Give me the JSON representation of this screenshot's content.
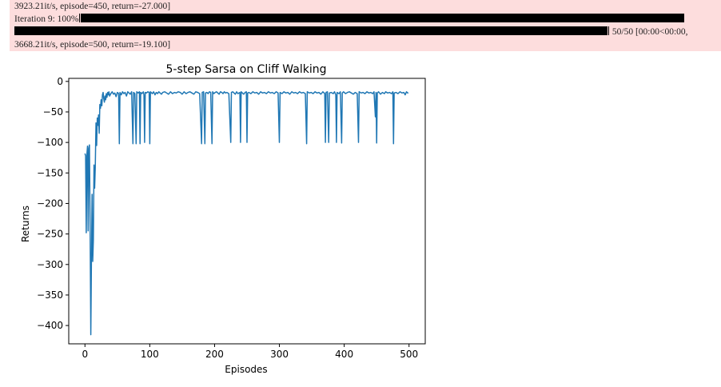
{
  "progress": {
    "line1_text": "3923.21it/s, episode=450, return=-27.000]",
    "iteration_label": "Iteration 9: 100%",
    "iteration_percent": 100,
    "stats_line2": "50/50 [00:00<00:00,",
    "line3_text": "3668.21it/s, episode=500, return=-19.100]"
  },
  "chart_data": {
    "type": "line",
    "title": "5-step Sarsa on Cliff Walking",
    "xlabel": "Episodes",
    "ylabel": "Returns",
    "xlim": [
      -25,
      525
    ],
    "ylim": [
      -430,
      5
    ],
    "xticks": [
      0,
      100,
      200,
      300,
      400,
      500
    ],
    "yticks": [
      0,
      -50,
      -100,
      -150,
      -200,
      -250,
      -300,
      -350,
      -400
    ],
    "grid": false,
    "color": "#1f77b4",
    "series": [
      {
        "name": "",
        "points": [
          [
            0,
            -118
          ],
          [
            1,
            -122
          ],
          [
            2,
            -248
          ],
          [
            3,
            -120
          ],
          [
            4,
            -106
          ],
          [
            5,
            -245
          ],
          [
            6,
            -110
          ],
          [
            7,
            -104
          ],
          [
            8,
            -248
          ],
          [
            9,
            -415
          ],
          [
            10,
            -290
          ],
          [
            11,
            -185
          ],
          [
            12,
            -295
          ],
          [
            13,
            -260
          ],
          [
            14,
            -137
          ],
          [
            15,
            -175
          ],
          [
            16,
            -140
          ],
          [
            17,
            -68
          ],
          [
            18,
            -105
          ],
          [
            19,
            -60
          ],
          [
            20,
            -72
          ],
          [
            21,
            -55
          ],
          [
            22,
            -85
          ],
          [
            23,
            -38
          ],
          [
            24,
            -44
          ],
          [
            25,
            -30
          ],
          [
            26,
            -40
          ],
          [
            27,
            -22
          ],
          [
            28,
            -18
          ],
          [
            29,
            -28
          ],
          [
            30,
            -34
          ],
          [
            31,
            -24
          ],
          [
            32,
            -30
          ],
          [
            33,
            -20
          ],
          [
            34,
            -26
          ],
          [
            35,
            -18
          ],
          [
            36,
            -22
          ],
          [
            37,
            -17
          ],
          [
            38,
            -24
          ],
          [
            40,
            -20
          ],
          [
            42,
            -17
          ],
          [
            44,
            -21
          ],
          [
            46,
            -19
          ],
          [
            48,
            -25
          ],
          [
            50,
            -18
          ],
          [
            52,
            -20
          ],
          [
            53,
            -102
          ],
          [
            54,
            -18
          ],
          [
            56,
            -22
          ],
          [
            58,
            -17
          ],
          [
            60,
            -20
          ],
          [
            62,
            -18
          ],
          [
            64,
            -24
          ],
          [
            66,
            -17
          ],
          [
            68,
            -19
          ],
          [
            70,
            -21
          ],
          [
            72,
            -17
          ],
          [
            74,
            -102
          ],
          [
            75,
            -18
          ],
          [
            77,
            -20
          ],
          [
            79,
            -102
          ],
          [
            80,
            -17
          ],
          [
            82,
            -19
          ],
          [
            84,
            -17
          ],
          [
            85,
            -102
          ],
          [
            86,
            -18
          ],
          [
            88,
            -20
          ],
          [
            90,
            -17
          ],
          [
            91,
            -22
          ],
          [
            92,
            -100
          ],
          [
            93,
            -18
          ],
          [
            95,
            -19
          ],
          [
            97,
            -17
          ],
          [
            99,
            -18
          ],
          [
            100,
            -102
          ],
          [
            101,
            -17
          ],
          [
            104,
            -20
          ],
          [
            106,
            -17
          ],
          [
            108,
            -22
          ],
          [
            110,
            -18
          ],
          [
            112,
            -20
          ],
          [
            114,
            -17
          ],
          [
            116,
            -19
          ],
          [
            118,
            -21
          ],
          [
            120,
            -18
          ],
          [
            123,
            -17
          ],
          [
            126,
            -19
          ],
          [
            129,
            -21
          ],
          [
            132,
            -17
          ],
          [
            135,
            -20
          ],
          [
            138,
            -18
          ],
          [
            141,
            -19
          ],
          [
            144,
            -17
          ],
          [
            147,
            -18
          ],
          [
            150,
            -21
          ],
          [
            153,
            -17
          ],
          [
            156,
            -20
          ],
          [
            159,
            -18
          ],
          [
            162,
            -17
          ],
          [
            165,
            -19
          ],
          [
            168,
            -21
          ],
          [
            171,
            -17
          ],
          [
            174,
            -18
          ],
          [
            177,
            -20
          ],
          [
            180,
            -102
          ],
          [
            181,
            -18
          ],
          [
            183,
            -17
          ],
          [
            185,
            -102
          ],
          [
            186,
            -19
          ],
          [
            188,
            -18
          ],
          [
            190,
            -20
          ],
          [
            192,
            -17
          ],
          [
            194,
            -18
          ],
          [
            196,
            -102
          ],
          [
            197,
            -17
          ],
          [
            199,
            -20
          ],
          [
            201,
            -18
          ],
          [
            203,
            -17
          ],
          [
            205,
            -19
          ],
          [
            207,
            -21
          ],
          [
            209,
            -17
          ],
          [
            211,
            -18
          ],
          [
            213,
            -20
          ],
          [
            215,
            -17
          ],
          [
            217,
            -19
          ],
          [
            219,
            -18
          ],
          [
            222,
            -20
          ],
          [
            225,
            -100
          ],
          [
            226,
            -18
          ],
          [
            228,
            -17
          ],
          [
            230,
            -19
          ],
          [
            232,
            -21
          ],
          [
            234,
            -17
          ],
          [
            236,
            -20
          ],
          [
            239,
            -18
          ],
          [
            240,
            -100
          ],
          [
            241,
            -17
          ],
          [
            243,
            -19
          ],
          [
            245,
            -21
          ],
          [
            247,
            -18
          ],
          [
            249,
            -17
          ],
          [
            250,
            -100
          ],
          [
            251,
            -19
          ],
          [
            253,
            -18
          ],
          [
            256,
            -20
          ],
          [
            259,
            -17
          ],
          [
            262,
            -19
          ],
          [
            265,
            -18
          ],
          [
            268,
            -21
          ],
          [
            271,
            -17
          ],
          [
            274,
            -19
          ],
          [
            277,
            -18
          ],
          [
            280,
            -20
          ],
          [
            283,
            -17
          ],
          [
            286,
            -19
          ],
          [
            289,
            -18
          ],
          [
            292,
            -20
          ],
          [
            295,
            -17
          ],
          [
            298,
            -19
          ],
          [
            300,
            -100
          ],
          [
            301,
            -18
          ],
          [
            304,
            -20
          ],
          [
            307,
            -17
          ],
          [
            310,
            -19
          ],
          [
            313,
            -18
          ],
          [
            316,
            -21
          ],
          [
            319,
            -17
          ],
          [
            322,
            -19
          ],
          [
            325,
            -18
          ],
          [
            328,
            -20
          ],
          [
            331,
            -17
          ],
          [
            334,
            -19
          ],
          [
            337,
            -18
          ],
          [
            340,
            -20
          ],
          [
            342,
            -102
          ],
          [
            343,
            -17
          ],
          [
            346,
            -19
          ],
          [
            349,
            -18
          ],
          [
            352,
            -20
          ],
          [
            355,
            -17
          ],
          [
            358,
            -19
          ],
          [
            361,
            -18
          ],
          [
            364,
            -21
          ],
          [
            367,
            -17
          ],
          [
            370,
            -20
          ],
          [
            371,
            -100
          ],
          [
            372,
            -18
          ],
          [
            374,
            -17
          ],
          [
            376,
            -100
          ],
          [
            377,
            -19
          ],
          [
            380,
            -18
          ],
          [
            383,
            -20
          ],
          [
            385,
            -17
          ],
          [
            387,
            -22
          ],
          [
            388,
            -100
          ],
          [
            389,
            -18
          ],
          [
            392,
            -20
          ],
          [
            394,
            -17
          ],
          [
            396,
            -101
          ],
          [
            397,
            -19
          ],
          [
            399,
            -17
          ],
          [
            402,
            -20
          ],
          [
            405,
            -18
          ],
          [
            408,
            -17
          ],
          [
            411,
            -19
          ],
          [
            414,
            -21
          ],
          [
            417,
            -18
          ],
          [
            420,
            -20
          ],
          [
            422,
            -100
          ],
          [
            423,
            -17
          ],
          [
            426,
            -19
          ],
          [
            429,
            -18
          ],
          [
            432,
            -20
          ],
          [
            435,
            -17
          ],
          [
            438,
            -19
          ],
          [
            441,
            -18
          ],
          [
            444,
            -20
          ],
          [
            446,
            -17
          ],
          [
            448,
            -58
          ],
          [
            449,
            -18
          ],
          [
            450,
            -101
          ],
          [
            451,
            -19
          ],
          [
            453,
            -17
          ],
          [
            456,
            -21
          ],
          [
            459,
            -18
          ],
          [
            462,
            -20
          ],
          [
            464,
            -17
          ],
          [
            467,
            -19
          ],
          [
            470,
            -18
          ],
          [
            473,
            -20
          ],
          [
            475,
            -17
          ],
          [
            476,
            -102
          ],
          [
            477,
            -19
          ],
          [
            480,
            -18
          ],
          [
            483,
            -20
          ],
          [
            486,
            -17
          ],
          [
            489,
            -19
          ],
          [
            492,
            -18
          ],
          [
            494,
            -22
          ],
          [
            496,
            -17
          ],
          [
            498,
            -19
          ],
          [
            499,
            -19
          ]
        ]
      }
    ]
  }
}
